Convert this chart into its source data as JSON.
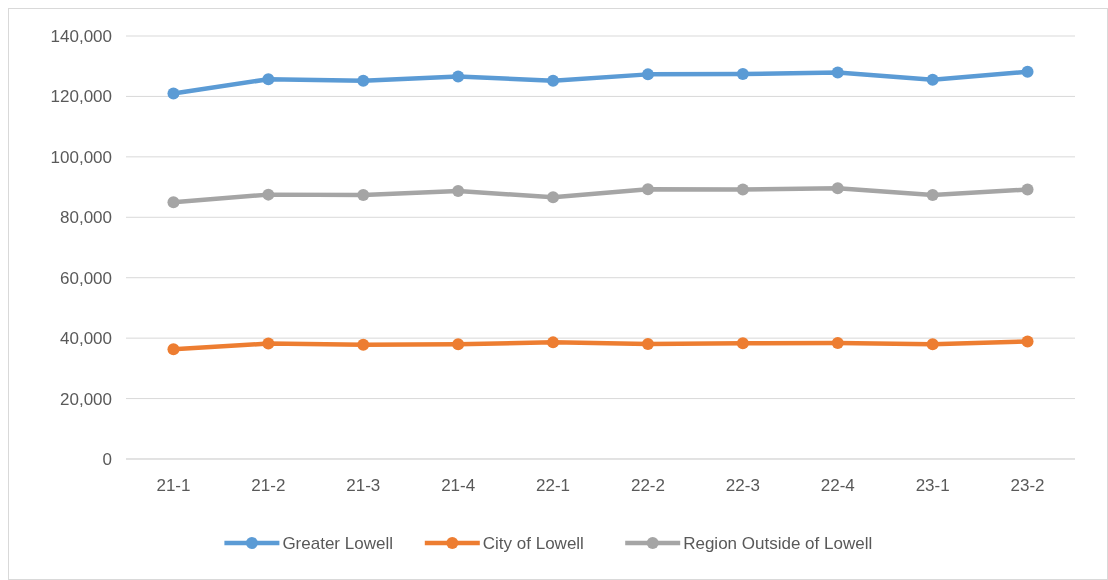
{
  "chart_data": {
    "type": "line",
    "categories": [
      "21-1",
      "21-2",
      "21-3",
      "21-4",
      "22-1",
      "22-2",
      "22-3",
      "22-4",
      "23-1",
      "23-2"
    ],
    "series": [
      {
        "name": "Greater Lowell",
        "color": "#5b9bd5",
        "values": [
          121000,
          125700,
          125200,
          126600,
          125200,
          127300,
          127400,
          127900,
          125500,
          128200
        ]
      },
      {
        "name": "City of Lowell",
        "color": "#ed7d31",
        "values": [
          36300,
          38200,
          37800,
          38000,
          38600,
          38100,
          38300,
          38400,
          38000,
          38900
        ]
      },
      {
        "name": "Region Outside of Lowell",
        "color": "#a5a5a5",
        "values": [
          85000,
          87500,
          87400,
          88700,
          86600,
          89300,
          89200,
          89600,
          87400,
          89200
        ]
      }
    ],
    "ylim": [
      0,
      140000
    ],
    "yticks": [
      {
        "value": 0,
        "label": "0"
      },
      {
        "value": 20000,
        "label": "20,000"
      },
      {
        "value": 40000,
        "label": "40,000"
      },
      {
        "value": 60000,
        "label": "60,000"
      },
      {
        "value": 80000,
        "label": "80,000"
      },
      {
        "value": 100000,
        "label": "100,000"
      },
      {
        "value": 120000,
        "label": "120,000"
      },
      {
        "value": 140000,
        "label": "140,000"
      }
    ],
    "grid": "y",
    "legend": "bottom",
    "marker": "circle",
    "line_style": "solid"
  }
}
